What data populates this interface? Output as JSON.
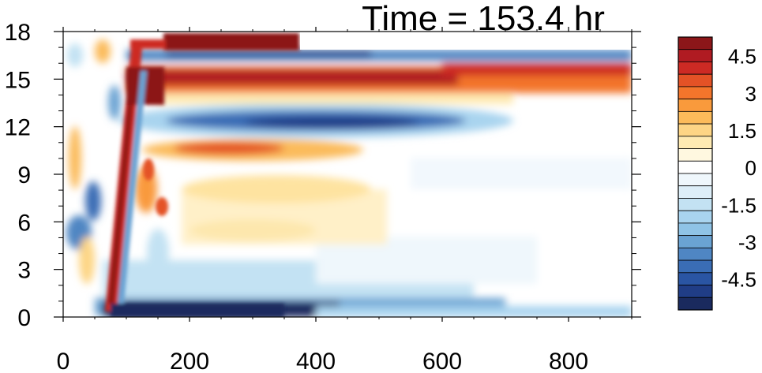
{
  "title": "Time = 153.4 hr",
  "chart_data": {
    "type": "heatmap",
    "title": "Time = 153.4 hr",
    "xlabel": "",
    "ylabel": "",
    "xlim": [
      0,
      900
    ],
    "ylim": [
      0,
      18
    ],
    "x_ticks": [
      "0",
      "200",
      "400",
      "600",
      "800"
    ],
    "y_ticks": [
      "0",
      "3",
      "6",
      "9",
      "12",
      "15",
      "18"
    ],
    "colorbar": {
      "labels": [
        "4.5",
        "3",
        "1.5",
        "0",
        "-1.5",
        "-3",
        "-4.5"
      ],
      "levels": [
        -5.25,
        -4.75,
        -4.25,
        -3.75,
        -3.25,
        -2.75,
        -2.25,
        -1.75,
        -1.25,
        -0.75,
        -0.25,
        0.25,
        0.75,
        1.25,
        1.75,
        2.25,
        2.75,
        3.25,
        3.75,
        4.25,
        4.75,
        5.25
      ],
      "colors": [
        "#1a2a5e",
        "#203d86",
        "#2a55a3",
        "#3a6db5",
        "#4f86c3",
        "#6aa3d3",
        "#8fc3e6",
        "#a9d4ef",
        "#c3e2f3",
        "#ddeef8",
        "#eff7fc",
        "#ffffff",
        "#fff8e0",
        "#feeab2",
        "#fdd585",
        "#fcbb5a",
        "#f99a3c",
        "#f3752b",
        "#e45226",
        "#cd2a24",
        "#b01b22",
        "#8c1619"
      ]
    },
    "features": [
      {
        "name": "bottom negative band",
        "x": [
          70,
          900
        ],
        "y": [
          0,
          1.2
        ],
        "value": -5.0
      },
      {
        "name": "shallow negative layer",
        "x": [
          100,
          700
        ],
        "y": [
          1.2,
          3.5
        ],
        "value": -1.5
      },
      {
        "name": "mid-level positive layer",
        "x": [
          160,
          650
        ],
        "y": [
          3.5,
          9.0
        ],
        "value": 1.5
      },
      {
        "name": "positive band near 10 km",
        "x": [
          160,
          470
        ],
        "y": [
          9.5,
          11.0
        ],
        "value": 3.5
      },
      {
        "name": "negative band near 12 km",
        "x": [
          150,
          650
        ],
        "y": [
          11.5,
          13.5
        ],
        "value": -4.0
      },
      {
        "name": "strong positive band near 15 km",
        "x": [
          100,
          900
        ],
        "y": [
          14.5,
          16.0
        ],
        "value": 5.0
      },
      {
        "name": "negative band near 16.5 km",
        "x": [
          150,
          900
        ],
        "y": [
          16.0,
          17.0
        ],
        "value": -3.5
      },
      {
        "name": "positive band near 17.5 km",
        "x": [
          150,
          375
        ],
        "y": [
          17.0,
          18.0
        ],
        "value": 5.0
      },
      {
        "name": "tilted front",
        "x": [
          60,
          160
        ],
        "y": [
          0,
          18
        ],
        "value": 5.0
      }
    ]
  }
}
